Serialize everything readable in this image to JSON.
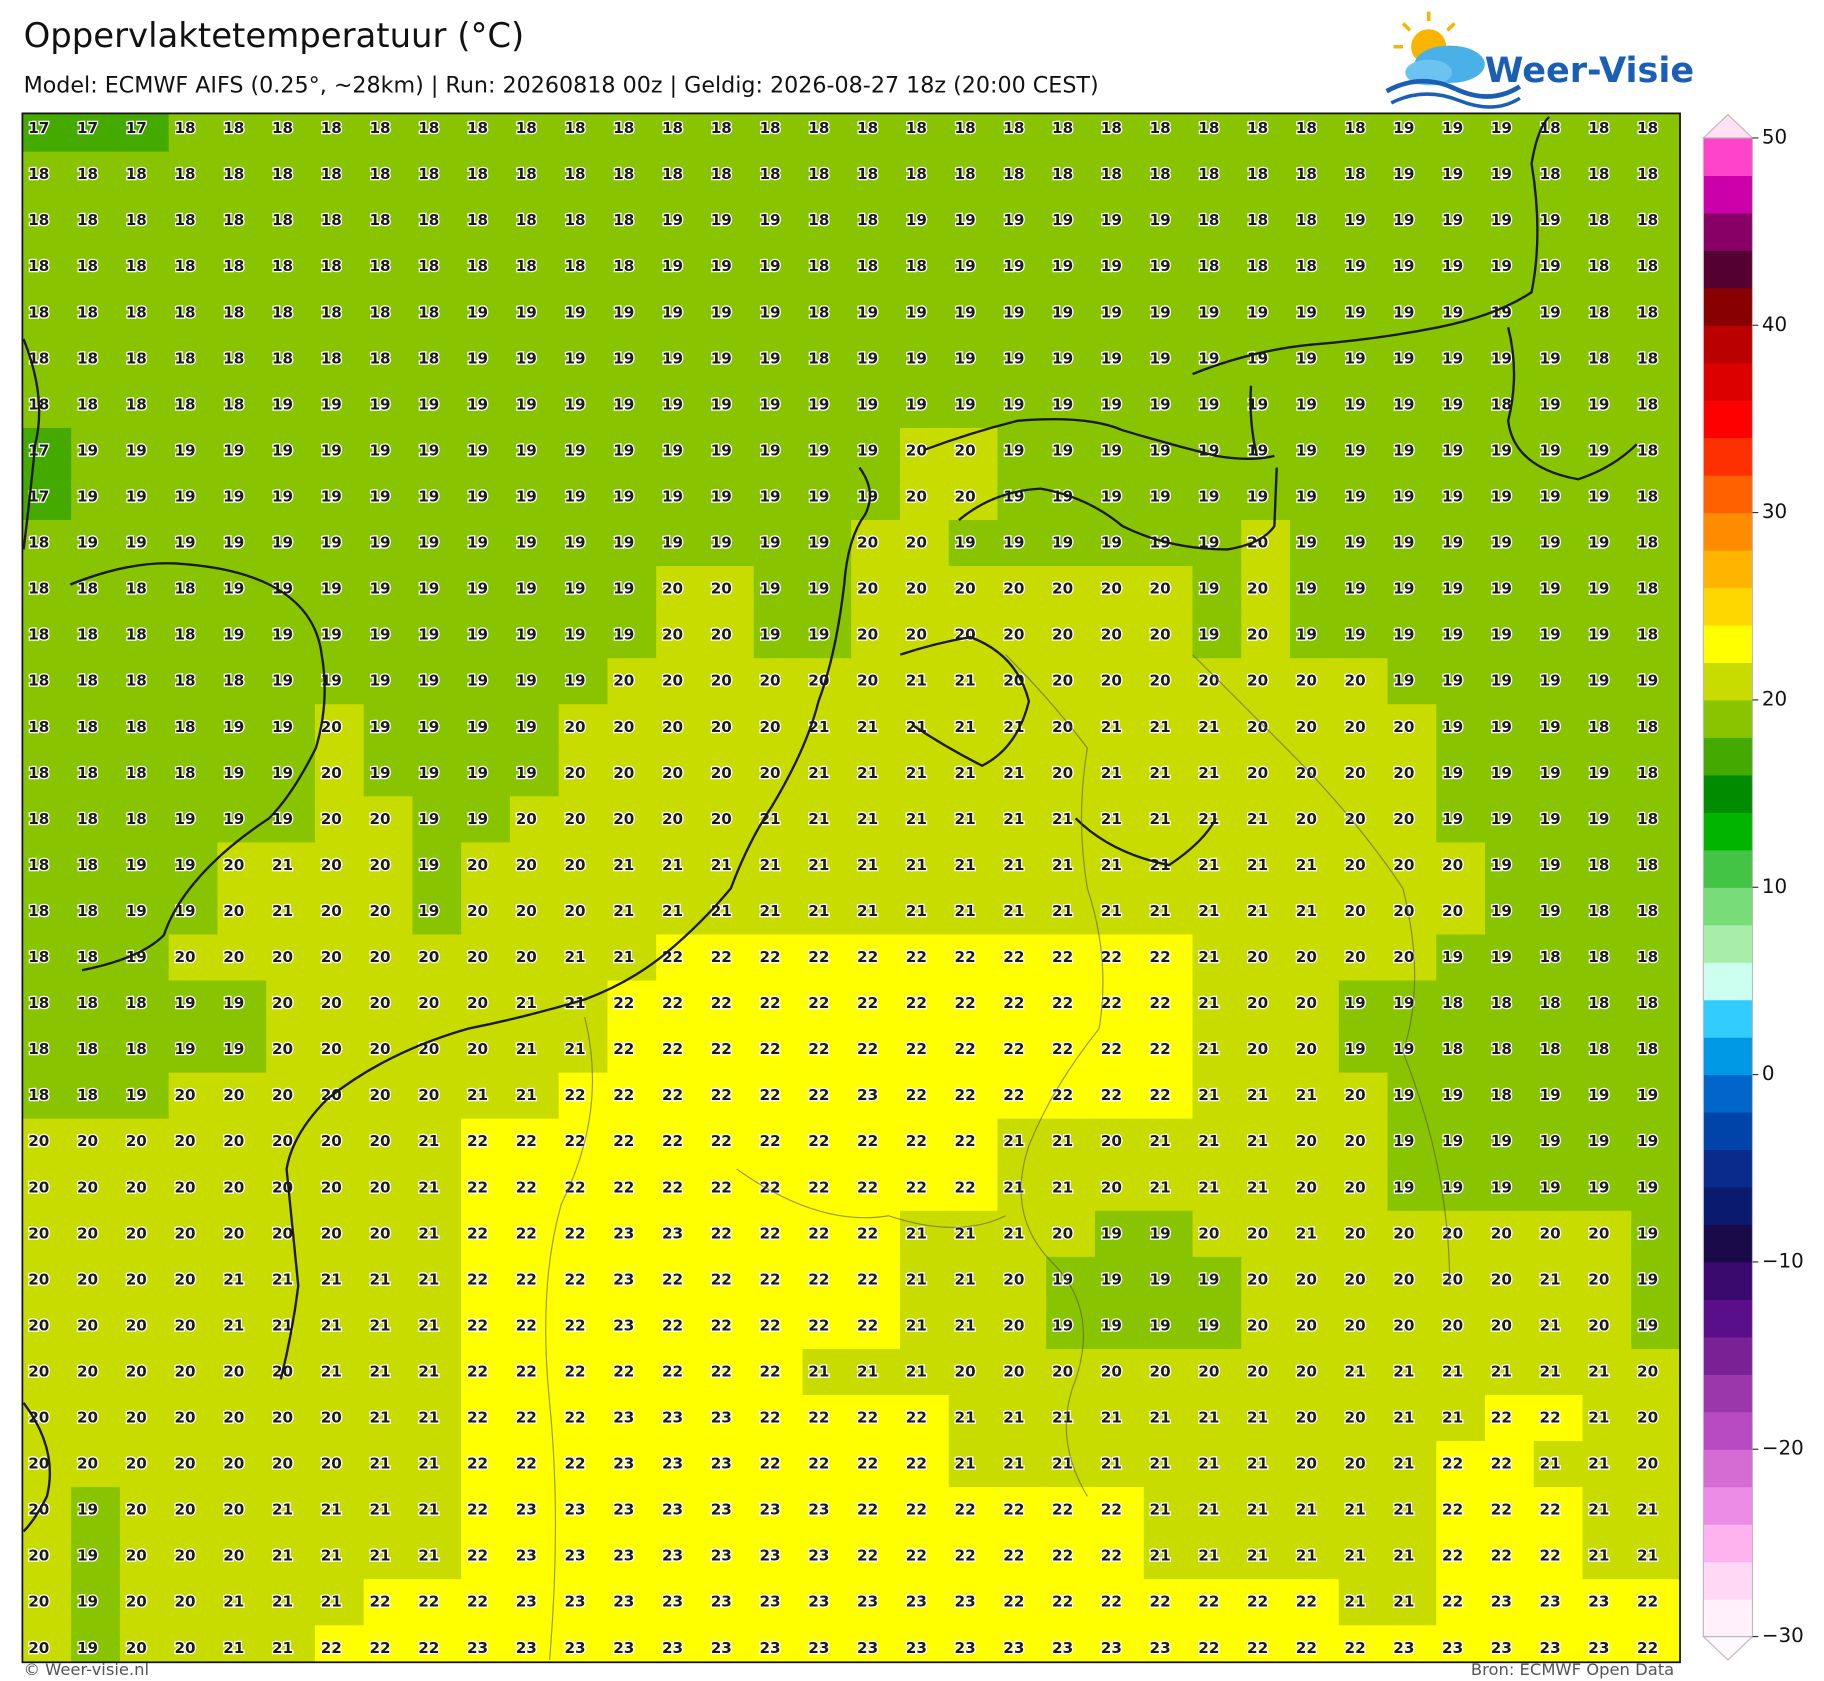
{
  "header": {
    "title": "Oppervlaktetemperatuur (°C)",
    "subtitle": "Model: ECMWF AIFS (0.25°, ~28km)  |  Run: 20260818 00z  |  Geldig: 2026-08-27 18z (20:00 CEST)"
  },
  "logo": {
    "text": "Weer-Visie"
  },
  "map": {
    "values": [
      [
        17,
        17,
        17,
        18,
        18,
        18,
        18,
        18,
        18,
        18,
        18,
        18,
        18,
        18,
        18,
        18,
        18,
        18,
        18,
        18,
        18,
        18,
        18,
        18,
        18,
        18,
        18,
        18,
        19,
        19,
        19,
        18,
        18,
        18
      ],
      [
        18,
        18,
        18,
        18,
        18,
        18,
        18,
        18,
        18,
        18,
        18,
        18,
        18,
        18,
        18,
        18,
        18,
        18,
        18,
        18,
        18,
        18,
        18,
        18,
        18,
        18,
        18,
        18,
        19,
        19,
        19,
        18,
        18,
        18
      ],
      [
        18,
        18,
        18,
        18,
        18,
        18,
        18,
        18,
        18,
        18,
        18,
        18,
        18,
        19,
        19,
        19,
        18,
        18,
        19,
        19,
        19,
        19,
        19,
        19,
        18,
        18,
        18,
        19,
        19,
        19,
        19,
        19,
        18,
        18
      ],
      [
        18,
        18,
        18,
        18,
        18,
        18,
        18,
        18,
        18,
        18,
        18,
        18,
        18,
        19,
        19,
        19,
        18,
        18,
        18,
        19,
        19,
        19,
        19,
        19,
        18,
        18,
        18,
        19,
        19,
        19,
        19,
        19,
        18,
        18
      ],
      [
        18,
        18,
        18,
        18,
        18,
        18,
        18,
        18,
        18,
        19,
        19,
        19,
        19,
        19,
        19,
        19,
        18,
        19,
        19,
        19,
        19,
        19,
        19,
        19,
        19,
        19,
        19,
        19,
        19,
        19,
        19,
        19,
        18,
        18
      ],
      [
        18,
        18,
        18,
        18,
        18,
        18,
        18,
        18,
        18,
        19,
        19,
        19,
        19,
        19,
        19,
        19,
        18,
        19,
        19,
        19,
        19,
        19,
        19,
        19,
        19,
        19,
        19,
        19,
        19,
        19,
        19,
        19,
        18,
        18
      ],
      [
        18,
        18,
        18,
        18,
        18,
        19,
        19,
        19,
        19,
        19,
        19,
        19,
        19,
        19,
        19,
        19,
        19,
        19,
        19,
        19,
        19,
        19,
        19,
        19,
        19,
        19,
        19,
        19,
        19,
        19,
        18,
        19,
        19,
        18
      ],
      [
        17,
        19,
        19,
        19,
        19,
        19,
        19,
        19,
        19,
        19,
        19,
        19,
        19,
        19,
        19,
        19,
        19,
        19,
        20,
        20,
        19,
        19,
        19,
        19,
        19,
        19,
        19,
        19,
        19,
        19,
        19,
        19,
        19,
        18
      ],
      [
        17,
        19,
        19,
        19,
        19,
        19,
        19,
        19,
        19,
        19,
        19,
        19,
        19,
        19,
        19,
        19,
        19,
        19,
        20,
        20,
        19,
        19,
        19,
        19,
        19,
        19,
        19,
        19,
        19,
        19,
        19,
        19,
        19,
        18
      ],
      [
        18,
        19,
        19,
        19,
        19,
        19,
        19,
        19,
        19,
        19,
        19,
        19,
        19,
        19,
        19,
        19,
        19,
        20,
        20,
        19,
        19,
        19,
        19,
        19,
        19,
        20,
        19,
        19,
        19,
        19,
        19,
        19,
        19,
        18
      ],
      [
        18,
        18,
        18,
        18,
        19,
        19,
        19,
        19,
        19,
        19,
        19,
        19,
        19,
        20,
        20,
        19,
        19,
        20,
        20,
        20,
        20,
        20,
        20,
        20,
        19,
        20,
        19,
        19,
        19,
        19,
        19,
        19,
        19,
        18
      ],
      [
        18,
        18,
        18,
        18,
        19,
        19,
        19,
        19,
        19,
        19,
        19,
        19,
        19,
        20,
        20,
        19,
        19,
        20,
        20,
        20,
        20,
        20,
        20,
        20,
        19,
        20,
        19,
        19,
        19,
        19,
        19,
        19,
        19,
        18
      ],
      [
        18,
        18,
        18,
        18,
        18,
        19,
        19,
        19,
        19,
        19,
        19,
        19,
        20,
        20,
        20,
        20,
        20,
        20,
        21,
        21,
        20,
        20,
        20,
        20,
        20,
        20,
        20,
        20,
        19,
        19,
        19,
        19,
        19,
        19
      ],
      [
        18,
        18,
        18,
        18,
        19,
        19,
        20,
        19,
        19,
        19,
        19,
        20,
        20,
        20,
        20,
        20,
        21,
        21,
        21,
        21,
        21,
        20,
        21,
        21,
        21,
        20,
        20,
        20,
        20,
        19,
        19,
        19,
        18,
        18
      ],
      [
        18,
        18,
        18,
        18,
        19,
        19,
        20,
        19,
        19,
        19,
        19,
        20,
        20,
        20,
        20,
        20,
        21,
        21,
        21,
        21,
        21,
        20,
        21,
        21,
        21,
        20,
        20,
        20,
        20,
        19,
        19,
        19,
        19,
        18
      ],
      [
        18,
        18,
        18,
        19,
        19,
        19,
        20,
        20,
        19,
        19,
        20,
        20,
        20,
        20,
        20,
        21,
        21,
        21,
        21,
        21,
        21,
        21,
        21,
        21,
        21,
        21,
        20,
        20,
        20,
        19,
        19,
        19,
        19,
        18
      ],
      [
        18,
        18,
        19,
        19,
        20,
        21,
        20,
        20,
        19,
        20,
        20,
        20,
        21,
        21,
        21,
        21,
        21,
        21,
        21,
        21,
        21,
        21,
        21,
        21,
        21,
        21,
        21,
        20,
        20,
        20,
        19,
        19,
        18,
        18
      ],
      [
        18,
        18,
        19,
        19,
        20,
        21,
        20,
        20,
        19,
        20,
        20,
        20,
        21,
        21,
        21,
        21,
        21,
        21,
        21,
        21,
        21,
        21,
        21,
        21,
        21,
        21,
        21,
        20,
        20,
        20,
        19,
        19,
        18,
        18
      ],
      [
        18,
        18,
        19,
        20,
        20,
        20,
        20,
        20,
        20,
        20,
        20,
        21,
        21,
        22,
        22,
        22,
        22,
        22,
        22,
        22,
        22,
        22,
        22,
        22,
        21,
        20,
        20,
        20,
        20,
        19,
        19,
        18,
        18,
        18
      ],
      [
        18,
        18,
        18,
        19,
        19,
        20,
        20,
        20,
        20,
        20,
        21,
        21,
        22,
        22,
        22,
        22,
        22,
        22,
        22,
        22,
        22,
        22,
        22,
        22,
        21,
        20,
        20,
        19,
        19,
        18,
        18,
        18,
        18,
        18
      ],
      [
        18,
        18,
        18,
        19,
        19,
        20,
        20,
        20,
        20,
        20,
        21,
        21,
        22,
        22,
        22,
        22,
        22,
        22,
        22,
        22,
        22,
        22,
        22,
        22,
        21,
        20,
        20,
        19,
        19,
        18,
        18,
        18,
        18,
        18
      ],
      [
        18,
        18,
        19,
        20,
        20,
        20,
        20,
        20,
        20,
        21,
        21,
        22,
        22,
        22,
        22,
        22,
        22,
        23,
        22,
        22,
        22,
        22,
        22,
        22,
        21,
        21,
        21,
        20,
        19,
        19,
        18,
        19,
        19,
        19
      ],
      [
        20,
        20,
        20,
        20,
        20,
        20,
        20,
        20,
        21,
        22,
        22,
        22,
        22,
        22,
        22,
        22,
        22,
        22,
        22,
        22,
        21,
        21,
        20,
        21,
        21,
        21,
        20,
        20,
        19,
        19,
        19,
        19,
        19,
        19
      ],
      [
        20,
        20,
        20,
        20,
        20,
        20,
        20,
        20,
        21,
        22,
        22,
        22,
        22,
        22,
        22,
        22,
        22,
        22,
        22,
        22,
        21,
        21,
        20,
        21,
        21,
        21,
        20,
        20,
        19,
        19,
        19,
        19,
        19,
        19
      ],
      [
        20,
        20,
        20,
        20,
        20,
        20,
        20,
        20,
        21,
        22,
        22,
        22,
        23,
        23,
        22,
        22,
        22,
        22,
        21,
        21,
        21,
        20,
        19,
        19,
        20,
        20,
        21,
        20,
        20,
        20,
        20,
        20,
        20,
        19
      ],
      [
        20,
        20,
        20,
        20,
        21,
        21,
        21,
        21,
        21,
        22,
        22,
        22,
        23,
        22,
        22,
        22,
        22,
        22,
        21,
        21,
        20,
        19,
        19,
        19,
        19,
        20,
        20,
        20,
        20,
        20,
        20,
        21,
        20,
        19
      ],
      [
        20,
        20,
        20,
        20,
        21,
        21,
        21,
        21,
        21,
        22,
        22,
        22,
        23,
        22,
        22,
        22,
        22,
        22,
        21,
        21,
        20,
        19,
        19,
        19,
        19,
        20,
        20,
        20,
        20,
        20,
        20,
        21,
        20,
        19
      ],
      [
        20,
        20,
        20,
        20,
        20,
        20,
        21,
        21,
        21,
        22,
        22,
        22,
        22,
        22,
        22,
        22,
        21,
        21,
        21,
        20,
        20,
        20,
        20,
        20,
        20,
        20,
        20,
        21,
        21,
        21,
        21,
        21,
        21,
        20
      ],
      [
        20,
        20,
        20,
        20,
        20,
        20,
        20,
        21,
        21,
        22,
        22,
        22,
        23,
        23,
        23,
        22,
        22,
        22,
        22,
        21,
        21,
        21,
        21,
        21,
        21,
        21,
        20,
        20,
        21,
        21,
        22,
        22,
        21,
        20
      ],
      [
        20,
        20,
        20,
        20,
        20,
        20,
        20,
        21,
        21,
        22,
        22,
        22,
        23,
        23,
        23,
        22,
        22,
        22,
        22,
        21,
        21,
        21,
        21,
        21,
        21,
        21,
        20,
        20,
        21,
        22,
        22,
        21,
        21,
        20
      ],
      [
        20,
        19,
        20,
        20,
        20,
        21,
        21,
        21,
        21,
        22,
        23,
        23,
        23,
        23,
        23,
        23,
        23,
        22,
        22,
        22,
        22,
        22,
        22,
        21,
        21,
        21,
        21,
        21,
        21,
        22,
        22,
        22,
        21,
        21
      ],
      [
        20,
        19,
        20,
        20,
        20,
        21,
        21,
        21,
        21,
        22,
        23,
        23,
        23,
        23,
        23,
        23,
        23,
        22,
        22,
        22,
        22,
        22,
        22,
        21,
        21,
        21,
        21,
        21,
        21,
        22,
        22,
        22,
        21,
        21
      ],
      [
        20,
        19,
        20,
        20,
        21,
        21,
        21,
        22,
        22,
        22,
        23,
        23,
        23,
        23,
        23,
        23,
        23,
        23,
        23,
        23,
        22,
        22,
        22,
        22,
        22,
        22,
        22,
        21,
        21,
        22,
        23,
        23,
        23,
        22
      ],
      [
        20,
        19,
        20,
        20,
        21,
        21,
        22,
        22,
        22,
        23,
        23,
        23,
        23,
        23,
        23,
        23,
        23,
        23,
        23,
        23,
        23,
        23,
        23,
        23,
        22,
        22,
        22,
        22,
        23,
        23,
        23,
        23,
        23,
        22
      ]
    ],
    "colorbar": {
      "ylim": [
        -30,
        50
      ],
      "yticks": [
        {
          "value": -30,
          "label": "−30"
        },
        {
          "value": -20,
          "label": "−20"
        },
        {
          "value": -10,
          "label": "−10"
        },
        0,
        10,
        20,
        30,
        40,
        50
      ],
      "colors": [
        "#fff0fb",
        "#ffd8f5",
        "#ffb3ee",
        "#eb8ce6",
        "#d46cd4",
        "#b84bc1",
        "#9a38ab",
        "#7b2196",
        "#5a0f8a",
        "#3b0a6e",
        "#1a0a4a",
        "#0a1a6e",
        "#0a2a8c",
        "#0044aa",
        "#0066cc",
        "#0099e6",
        "#33ccff",
        "#ccfff0",
        "#a8eea8",
        "#78dc78",
        "#44c444",
        "#00b400",
        "#008c00",
        "#44aa00",
        "#88c400",
        "#c8dc00",
        "#ffff00",
        "#ffd700",
        "#ffb400",
        "#ff8c00",
        "#ff6000",
        "#ff3000",
        "#ff0000",
        "#dd0000",
        "#bb0000",
        "#880000",
        "#550033",
        "#880066",
        "#cc00aa",
        "#ff44cc"
      ]
    }
  },
  "footer": {
    "left": "© Weer-visie.nl",
    "right": "Bron: ECMWF Open Data"
  }
}
